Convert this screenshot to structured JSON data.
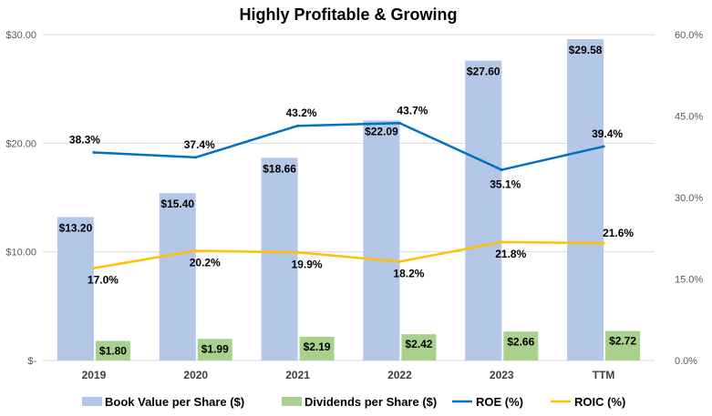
{
  "chart_data": {
    "type": "bar",
    "title": "Highly Profitable & Growing",
    "categories": [
      "2019",
      "2020",
      "2021",
      "2022",
      "2023",
      "TTM"
    ],
    "left_axis": {
      "range": [
        0,
        30
      ],
      "ticks": [
        0,
        10,
        20,
        30
      ],
      "tick_labels": [
        "$-",
        "$10.00",
        "$20.00",
        "$30.00"
      ]
    },
    "right_axis": {
      "range": [
        0,
        60
      ],
      "ticks": [
        0,
        15,
        30,
        45,
        60
      ],
      "tick_labels": [
        "0.0%",
        "15.0%",
        "30.0%",
        "45.0%",
        "60.0%"
      ]
    },
    "gridlines": true,
    "legend_position": "bottom",
    "series": [
      {
        "name": "Book Value per Share ($)",
        "kind": "bar",
        "axis": "left",
        "color": "#B4C7E7",
        "values": [
          13.2,
          15.4,
          18.66,
          22.09,
          27.6,
          29.58
        ],
        "labels": [
          "$13.20",
          "$15.40",
          "$18.66",
          "$22.09",
          "$27.60",
          "$29.58"
        ]
      },
      {
        "name": "Dividends per Share ($)",
        "kind": "bar",
        "axis": "left",
        "color": "#A9D18E",
        "values": [
          1.8,
          1.99,
          2.19,
          2.42,
          2.66,
          2.72
        ],
        "labels": [
          "$1.80",
          "$1.99",
          "$2.19",
          "$2.42",
          "$2.66",
          "$2.72"
        ]
      },
      {
        "name": "ROE (%)",
        "kind": "line",
        "axis": "right",
        "color": "#0070C0",
        "values": [
          38.3,
          37.4,
          43.2,
          43.7,
          35.1,
          39.4
        ],
        "labels": [
          "38.3%",
          "37.4%",
          "43.2%",
          "43.7%",
          "35.1%",
          "39.4%"
        ]
      },
      {
        "name": "ROIC (%)",
        "kind": "line",
        "axis": "right",
        "color": "#FFC000",
        "values": [
          17.0,
          20.2,
          19.9,
          18.2,
          21.8,
          21.6
        ],
        "labels": [
          "17.0%",
          "20.2%",
          "19.9%",
          "18.2%",
          "21.8%",
          "21.6%"
        ]
      }
    ]
  }
}
